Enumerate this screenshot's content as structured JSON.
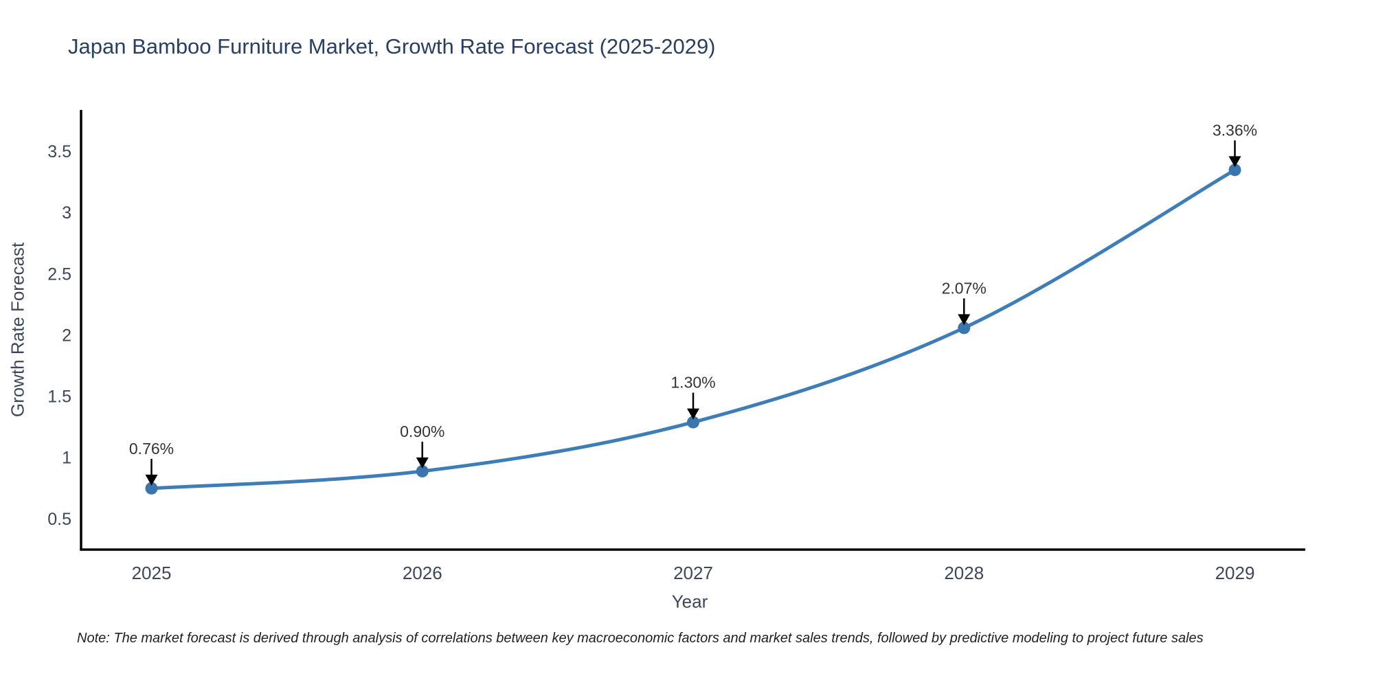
{
  "title": "Japan Bamboo Furniture Market, Growth Rate Forecast (2025-2029)",
  "note": "Note: The market forecast is derived through analysis of correlations between key macroeconomic factors and market sales trends, followed by predictive modeling to project future sales",
  "chart_data": {
    "type": "line",
    "title": "Japan Bamboo Furniture Market, Growth Rate Forecast (2025-2029)",
    "xlabel": "Year",
    "ylabel": "Growth Rate Forecast",
    "x": [
      2025,
      2026,
      2027,
      2028,
      2029
    ],
    "values": [
      0.76,
      0.9,
      1.3,
      2.07,
      3.36
    ],
    "point_labels": [
      "0.76%",
      "0.90%",
      "1.30%",
      "2.07%",
      "3.36%"
    ],
    "x_tick_labels": [
      "2025",
      "2026",
      "2027",
      "2028",
      "2029"
    ],
    "y_ticks": [
      0.5,
      1,
      1.5,
      2,
      2.5,
      3,
      3.5
    ],
    "y_tick_labels": [
      "0.5",
      "1",
      "1.5",
      "2",
      "2.5",
      "3",
      "3.5"
    ],
    "xlim": [
      2024.74,
      2029.26
    ],
    "ylim": [
      0.26,
      3.85
    ],
    "grid": false,
    "legend": "none",
    "line_shape": "spline",
    "colors": {
      "line": "#3e7db6",
      "marker": "#3a76ad",
      "spine": "#000000",
      "tick_label": "#3e4757",
      "annotation_text": "#333333",
      "annotation_arrow": "#000000",
      "title": "#2a3f5f"
    }
  }
}
